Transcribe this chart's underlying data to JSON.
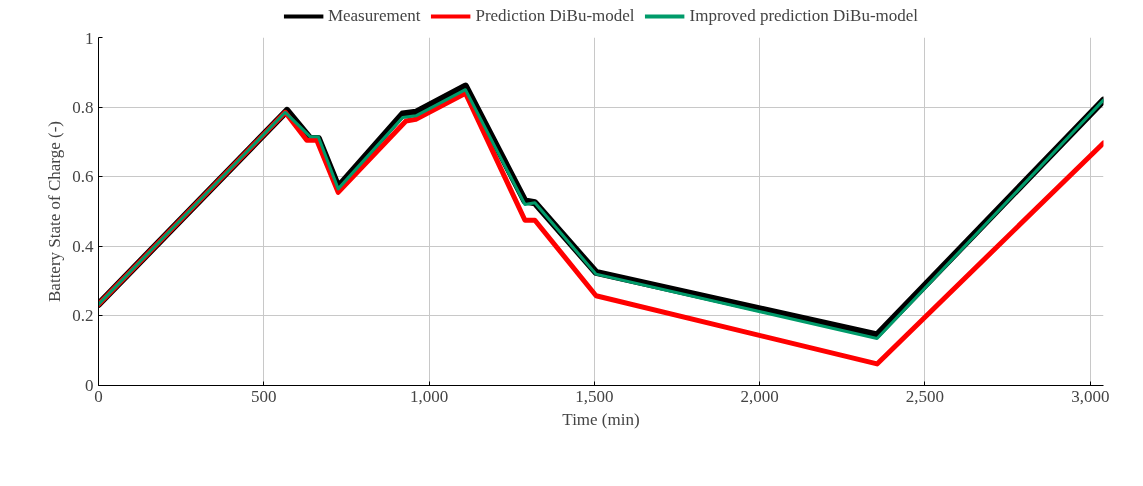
{
  "chart_data": {
    "type": "line",
    "xlabel": "Time (min)",
    "ylabel": "Battery State of Charge (-)",
    "xlim": [
      0,
      3040
    ],
    "ylim": [
      0,
      1
    ],
    "xticks": [
      0,
      500,
      {
        "value": 1000,
        "label": "1,000"
      },
      {
        "value": 1500,
        "label": "1,500"
      },
      {
        "value": 2000,
        "label": "2,000"
      },
      {
        "value": 2500,
        "label": "2,500"
      },
      {
        "value": 3000,
        "label": "3,000"
      }
    ],
    "yticks": [
      0,
      0.2,
      0.4,
      0.6,
      0.8,
      1
    ],
    "grid": true,
    "legend": "top",
    "marker": "none",
    "line_style": "solid",
    "series": [
      {
        "name": "Measurement",
        "color": "#000000",
        "x": [
          0,
          570,
          640,
          665,
          725,
          920,
          960,
          1110,
          1290,
          1320,
          1505,
          2355,
          3040
        ],
        "values": [
          0.233,
          0.79,
          0.71,
          0.71,
          0.57,
          0.78,
          0.785,
          0.86,
          0.53,
          0.525,
          0.325,
          0.145,
          0.82
        ]
      },
      {
        "name": "Prediction DiBu-model",
        "color": "#ff0000",
        "x": [
          0,
          565,
          630,
          660,
          725,
          930,
          960,
          1110,
          1290,
          1320,
          1505,
          2355,
          3040
        ],
        "values": [
          0.233,
          0.785,
          0.705,
          0.705,
          0.555,
          0.76,
          0.765,
          0.84,
          0.475,
          0.475,
          0.258,
          0.062,
          0.697
        ]
      },
      {
        "name": "Improved prediction DiBu-model",
        "color": "#009b6a",
        "x": [
          0,
          565,
          640,
          665,
          725,
          920,
          960,
          1110,
          1290,
          1320,
          1505,
          2355,
          3040
        ],
        "values": [
          0.233,
          0.785,
          0.715,
          0.715,
          0.565,
          0.77,
          0.775,
          0.85,
          0.52,
          0.525,
          0.32,
          0.135,
          0.82
        ]
      }
    ]
  }
}
